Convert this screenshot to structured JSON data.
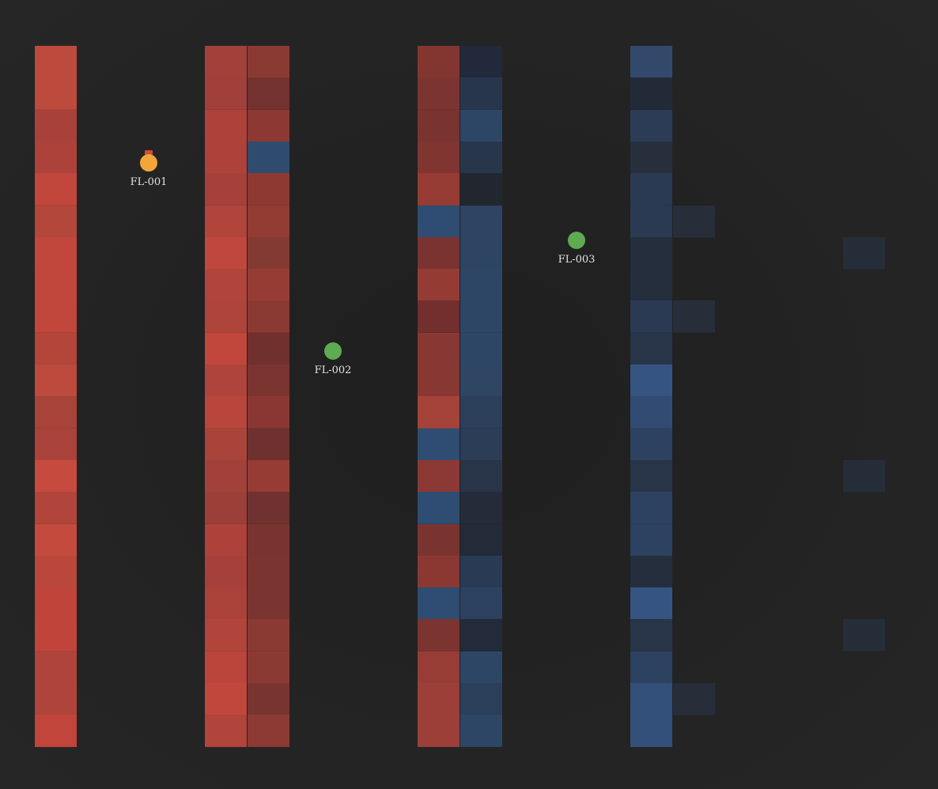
{
  "palette": {
    "background": "#252525",
    "forklift_busy": "#f2a63a",
    "forklift_idle": "#5eab52",
    "alert_flag": "#d34b3a",
    "label": "#e2e2e2"
  },
  "rack_columns": [
    {
      "id": "A1",
      "cells": [
        "#bc4a3d",
        "#bc4a3d",
        "#a8413a",
        "#ad423a",
        "#c1473d",
        "#b3473c",
        "#c1473d",
        "#c1463c",
        "#c1463c",
        "#b3453b",
        "#bc4a3d",
        "#a8433a",
        "#a9423a",
        "#c64a3e",
        "#b1453b",
        "#c54a3e",
        "#b9473c",
        "#c0443a",
        "#c1443a",
        "#ae443b",
        "#ae443b",
        "#c1453b"
      ]
    },
    {
      "id": "B1",
      "cells": [
        "#a1413a",
        "#a1403a",
        "#ae423a",
        "#ae423a",
        "#a5413a",
        "#b1443b",
        "#c0473d",
        "#b1453b",
        "#af443b",
        "#c1463c",
        "#ae443b",
        "#b9463c",
        "#aa443b",
        "#a1413a",
        "#9b3f38",
        "#ae423a",
        "#a6403a",
        "#ab423a",
        "#b1443b",
        "#bb453b",
        "#c1473d",
        "#b1443b"
      ]
    },
    {
      "id": "B2",
      "cells": [
        "#8b3a33",
        "#733230",
        "#8d3832",
        "#2f4c6e",
        "#8e3a33",
        "#933c34",
        "#833a33",
        "#973c35",
        "#8b3a33",
        "#6f302e",
        "#7b3430",
        "#8a3733",
        "#6e312f",
        "#963c34",
        "#703230",
        "#7a3430",
        "#7a3531",
        "#7a3531",
        "#8a3a33",
        "#8b3a33",
        "#783530",
        "#8d3a34"
      ]
    },
    {
      "id": "C1",
      "cells": [
        "#833630",
        "#7b3430",
        "#7a3430",
        "#803530",
        "#963c34",
        "#2f4d72",
        "#7a3330",
        "#943c34",
        "#722f2e",
        "#883833",
        "#883833",
        "#a5423a",
        "#2f4d72",
        "#8c3834",
        "#2f4d72",
        "#7a3430",
        "#8b3833",
        "#2f4d72",
        "#7c3430",
        "#973d36",
        "#9c3f38",
        "#9c3f38"
      ]
    },
    {
      "id": "C2",
      "cells": [
        "#22293a",
        "#28364c",
        "#2e4666",
        "#27364b",
        "#22272f",
        "#2e4463",
        "#2d4563",
        "#2e4666",
        "#2e4666",
        "#2e4666",
        "#2e4563",
        "#2c3f5a",
        "#2b3d57",
        "#283548",
        "#252b38",
        "#242b38",
        "#293a55",
        "#2d4160",
        "#232a3a",
        "#2d4665",
        "#2b3f5a",
        "#2e4666"
      ]
    },
    {
      "id": "D1",
      "cells": [
        "#33496c",
        "#232a37",
        "#2c3c57",
        "#272f3d",
        "#2b3a53",
        "#2b3a53",
        "#252e3d",
        "#252e3d",
        "#2b3a53",
        "#283549",
        "#365481",
        "#314b72",
        "#2d4160",
        "#283548",
        "#2d4160",
        "#2d4160",
        "#252e3d",
        "#365481",
        "#283548",
        "#2d4160",
        "#33507b",
        "#33507b"
      ]
    }
  ],
  "sparse_cells": [
    {
      "id": "D2",
      "color": "#272e3a",
      "row": 5
    },
    {
      "id": "D2",
      "color": "#272e3a",
      "row": 8
    },
    {
      "id": "D2",
      "color": "#272e3a",
      "row": 20
    },
    {
      "id": "E1",
      "color": "#252d39",
      "row": 6
    },
    {
      "id": "E1",
      "color": "#252d39",
      "row": 13
    },
    {
      "id": "E1",
      "color": "#252d39",
      "row": 18
    }
  ],
  "forklifts": [
    {
      "id": "FL-001",
      "label": "FL-001",
      "status": "busy",
      "alert": true
    },
    {
      "id": "FL-002",
      "label": "FL-002",
      "status": "idle",
      "alert": false
    },
    {
      "id": "FL-003",
      "label": "FL-003",
      "status": "idle",
      "alert": false
    }
  ]
}
